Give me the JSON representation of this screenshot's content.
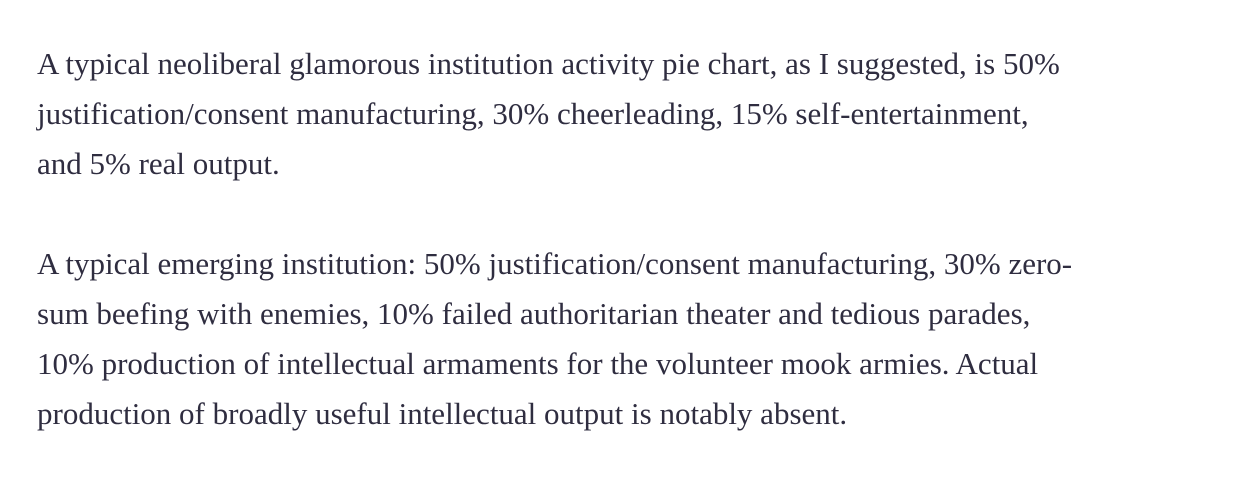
{
  "paragraphs": [
    {
      "lines": [
        "A typical neoliberal glamorous institution activity pie chart, as I suggested, is 50%",
        "justification/consent manufacturing, 30% cheerleading, 15% self-entertainment,",
        "and 5% real output."
      ]
    },
    {
      "lines": [
        "A typical emerging institution: 50% justification/consent manufacturing, 30% zero-",
        "sum beefing with enemies, 10% failed authoritarian theater and tedious parades,",
        "10% production of intellectual armaments for the volunteer mook armies. Actual",
        "production of broadly useful intellectual output is notably absent."
      ]
    }
  ]
}
